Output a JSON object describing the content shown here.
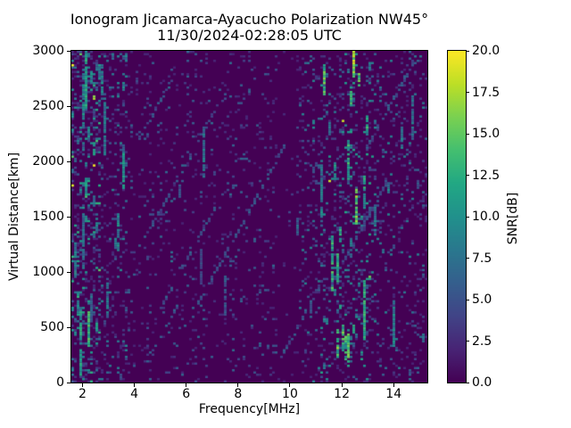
{
  "chart_data": {
    "type": "heatmap",
    "title": "Ionogram Jicamarca-Ayacucho Polarization NW45°",
    "subtitle": "11/30/2024-02:28:05 UTC",
    "xlabel": "Frequency[MHz]",
    "ylabel": "Virtual Distance[km]",
    "xlim": [
      1.57,
      15.3
    ],
    "ylim": [
      0,
      3000
    ],
    "xticks": [
      2,
      4,
      6,
      8,
      10,
      12,
      14
    ],
    "yticks": [
      0,
      500,
      1000,
      1500,
      2000,
      2500,
      3000
    ],
    "colorbar": {
      "label": "SNR[dB]",
      "min": 0.0,
      "max": 20.0,
      "ticks": [
        "0.0",
        "2.5",
        "5.0",
        "7.5",
        "10.0",
        "12.5",
        "15.0",
        "17.5",
        "20.0"
      ],
      "colormap": "viridis",
      "position": "right"
    },
    "grid": false,
    "background_value_db": 0,
    "grid_bins": {
      "cols": 133,
      "rows": 149
    },
    "seed": 20241130,
    "noise_bands": [
      {
        "freq_range": [
          1.57,
          2.75
        ],
        "density": 0.3,
        "max_db": 13,
        "streaks_per_col": 1.5,
        "streak_db": 11
      },
      {
        "freq_range": [
          2.75,
          3.35
        ],
        "density": 0.15,
        "max_db": 9,
        "streaks_per_col": 0.7,
        "streak_db": 9
      },
      {
        "freq_range": [
          3.35,
          3.75
        ],
        "density": 0.16,
        "max_db": 10,
        "streaks_per_col": 0.8,
        "streak_db": 9
      },
      {
        "freq_range": [
          3.75,
          9.6
        ],
        "density": 0.07,
        "max_db": 7,
        "streaks_per_col": 0.06,
        "streak_db": 7
      },
      {
        "freq_range": [
          9.6,
          10.25
        ],
        "density": 0.02,
        "max_db": 5,
        "streaks_per_col": 0.0,
        "streak_db": 0
      },
      {
        "freq_range": [
          10.25,
          11.2
        ],
        "density": 0.13,
        "max_db": 9,
        "streaks_per_col": 0.45,
        "streak_db": 9
      },
      {
        "freq_range": [
          11.2,
          13.3
        ],
        "density": 0.17,
        "max_db": 12,
        "streaks_per_col": 0.9,
        "streak_db": 12
      },
      {
        "freq_range": [
          13.3,
          15.3
        ],
        "density": 0.13,
        "max_db": 9,
        "streaks_per_col": 0.35,
        "streak_db": 8
      }
    ],
    "quiet_band_mhz": [
      9.6,
      10.25
    ],
    "bright_streaks": [
      {
        "freq_mhz": 12.4,
        "km_range": [
          2760,
          3000
        ],
        "db": 18
      },
      {
        "freq_mhz": 12.35,
        "km_range": [
          2500,
          2650
        ],
        "db": 14
      },
      {
        "freq_mhz": 12.5,
        "km_range": [
          1430,
          1730
        ],
        "db": 16
      },
      {
        "freq_mhz": 12.8,
        "km_range": [
          380,
          900
        ],
        "db": 13
      },
      {
        "freq_mhz": 12.25,
        "km_range": [
          150,
          420
        ],
        "db": 15
      },
      {
        "freq_mhz": 2.05,
        "km_range": [
          2480,
          2950
        ],
        "db": 12
      },
      {
        "freq_mhz": 2.2,
        "km_range": [
          330,
          620
        ],
        "db": 14
      },
      {
        "freq_mhz": 1.85,
        "km_range": [
          60,
          520
        ],
        "db": 12
      },
      {
        "freq_mhz": 3.55,
        "km_range": [
          1750,
          2050
        ],
        "db": 11
      },
      {
        "freq_mhz": 11.75,
        "km_range": [
          900,
          1150
        ],
        "db": 13
      }
    ],
    "diagonal_streaks": 9
  },
  "colors": {
    "figure_bg": "#ffffff",
    "text": "#000000",
    "spine": "#000000",
    "heatmap_bg": "#440154",
    "viridis_stops": [
      [
        0.0,
        "#440154"
      ],
      [
        0.1,
        "#482475"
      ],
      [
        0.2,
        "#414487"
      ],
      [
        0.3,
        "#355f8d"
      ],
      [
        0.4,
        "#2a788e"
      ],
      [
        0.5,
        "#21918c"
      ],
      [
        0.6,
        "#22a884"
      ],
      [
        0.7,
        "#44bf70"
      ],
      [
        0.8,
        "#7ad151"
      ],
      [
        0.9,
        "#bddf26"
      ],
      [
        1.0,
        "#fde725"
      ]
    ]
  }
}
